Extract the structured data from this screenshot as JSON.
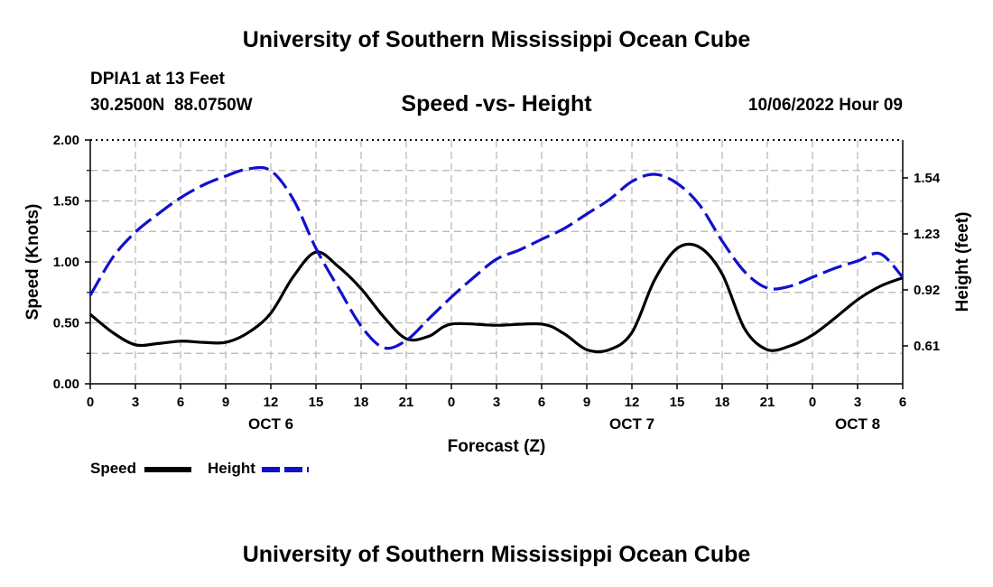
{
  "header": {
    "title": "University of Southern Mississippi Ocean Cube",
    "station": "DPIA1 at 13 Feet",
    "coords": "30.2500N  88.0750W",
    "subtitle": "Speed -vs- Height",
    "run_date": "10/06/2022 Hour 09"
  },
  "footer": {
    "title": "University of Southern Mississippi Ocean Cube"
  },
  "legend": {
    "speed_label": "Speed",
    "height_label": "Height"
  },
  "chart_data": {
    "type": "line",
    "title": "Speed -vs- Height",
    "xlabel": "Forecast (Z)",
    "ylabel_left": "Speed (Knots)",
    "ylabel_right": "Height (feet)",
    "xlim": [
      0,
      54
    ],
    "ylim_left": [
      0,
      2
    ],
    "ylim_right": [
      0.4,
      1.75
    ],
    "x_tick_values": [
      0,
      3,
      6,
      9,
      12,
      15,
      18,
      21,
      24,
      27,
      30,
      33,
      36,
      39,
      42,
      45,
      48,
      51,
      54
    ],
    "x_tick_labels": [
      "0",
      "3",
      "6",
      "9",
      "12",
      "15",
      "18",
      "21",
      "0",
      "3",
      "6",
      "9",
      "12",
      "15",
      "18",
      "21",
      "0",
      "3",
      "6"
    ],
    "date_labels": [
      {
        "x": 12,
        "label": "OCT 6"
      },
      {
        "x": 36,
        "label": "OCT 7"
      },
      {
        "x": 51,
        "label": "OCT 8"
      }
    ],
    "y_left_ticks": [
      0,
      0.5,
      1.0,
      1.5,
      2.0
    ],
    "y_left_tick_labels": [
      "0.00",
      "0.50",
      "1.00",
      "1.50",
      "2.00"
    ],
    "y_right_ticks": [
      0.61,
      0.92,
      1.23,
      1.54
    ],
    "y_right_tick_labels": [
      "0.61",
      "0.92",
      "1.23",
      "1.54"
    ],
    "grid": true,
    "colors": {
      "speed": "#000000",
      "height": "#1010cc",
      "grid": "#b4b4b4"
    },
    "series": [
      {
        "name": "Speed",
        "axis": "left",
        "style": "solid",
        "x": [
          0,
          1.5,
          3,
          4.5,
          6,
          7.5,
          9,
          10.5,
          12,
          13.5,
          15,
          16.5,
          18,
          19.5,
          21,
          22.5,
          24,
          27,
          30,
          31.5,
          33,
          34.5,
          36,
          37.5,
          39,
          40.5,
          42,
          43.5,
          45,
          46.5,
          48,
          49.5,
          51,
          52.5,
          54
        ],
        "values": [
          0.57,
          0.42,
          0.32,
          0.33,
          0.35,
          0.34,
          0.34,
          0.42,
          0.58,
          0.88,
          1.08,
          0.96,
          0.78,
          0.55,
          0.37,
          0.39,
          0.49,
          0.48,
          0.49,
          0.41,
          0.28,
          0.28,
          0.42,
          0.85,
          1.11,
          1.12,
          0.9,
          0.45,
          0.28,
          0.31,
          0.4,
          0.54,
          0.69,
          0.8,
          0.87
        ]
      },
      {
        "name": "Height",
        "axis": "right",
        "style": "dashed",
        "x": [
          0,
          1.5,
          3,
          4.5,
          6,
          7.5,
          9,
          10.5,
          12,
          13.5,
          15,
          16.5,
          18,
          19.5,
          21,
          22.5,
          24,
          25.5,
          27,
          28.5,
          30,
          31.5,
          33,
          34.5,
          36,
          37.5,
          39,
          40.5,
          42,
          43.5,
          45,
          46.5,
          48,
          49.5,
          51,
          52.5,
          54
        ],
        "values": [
          0.89,
          1.1,
          1.24,
          1.34,
          1.43,
          1.5,
          1.55,
          1.59,
          1.58,
          1.42,
          1.15,
          0.93,
          0.72,
          0.6,
          0.64,
          0.76,
          0.88,
          0.99,
          1.09,
          1.14,
          1.2,
          1.26,
          1.34,
          1.42,
          1.52,
          1.56,
          1.51,
          1.39,
          1.19,
          1.02,
          0.93,
          0.94,
          0.99,
          1.04,
          1.08,
          1.12,
          0.99
        ]
      }
    ]
  }
}
